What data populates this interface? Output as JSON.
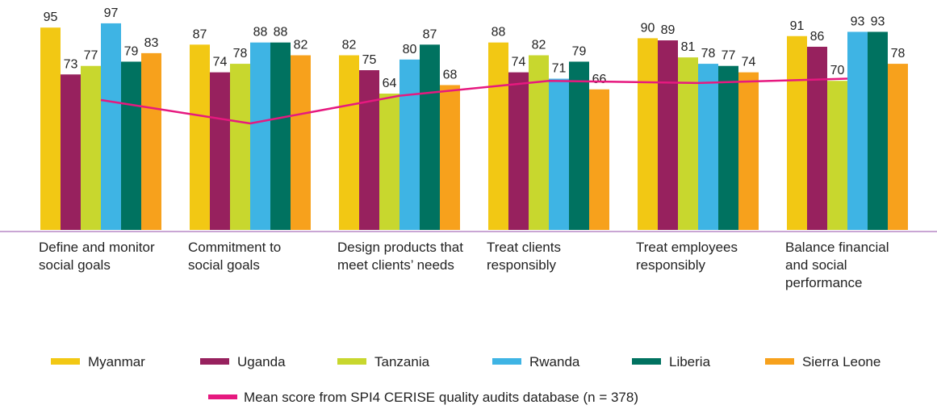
{
  "chart_data": {
    "type": "bar",
    "categories": [
      "Define and monitor social goals",
      "Commitment to social goals",
      "Design products that meet clients’ needs",
      "Treat clients responsibly",
      "Treat employees responsibly",
      "Balance financial and social performance"
    ],
    "ylim": [
      0,
      100
    ],
    "series": [
      {
        "name": "Myanmar",
        "color": "#f2c814",
        "values": [
          95,
          87,
          82,
          88,
          90,
          91
        ]
      },
      {
        "name": "Uganda",
        "color": "#97215e",
        "values": [
          73,
          74,
          75,
          74,
          89,
          86
        ]
      },
      {
        "name": "Tanzania",
        "color": "#c8d72e",
        "values": [
          77,
          78,
          64,
          82,
          81,
          70
        ]
      },
      {
        "name": "Rwanda",
        "color": "#3eb4e4",
        "values": [
          97,
          88,
          80,
          71,
          78,
          93
        ]
      },
      {
        "name": "Liberia",
        "color": "#007260",
        "values": [
          79,
          88,
          87,
          79,
          77,
          93
        ]
      },
      {
        "name": "Sierra Leone",
        "color": "#f7a11c",
        "values": [
          83,
          82,
          68,
          66,
          74,
          78
        ]
      },
      {
        "name": "Mean score from SPI4 CERISE quality audits database (n = 378)",
        "color": "#e6197f",
        "type": "line",
        "values": [
          61,
          50,
          63,
          70,
          69,
          71
        ]
      }
    ]
  }
}
